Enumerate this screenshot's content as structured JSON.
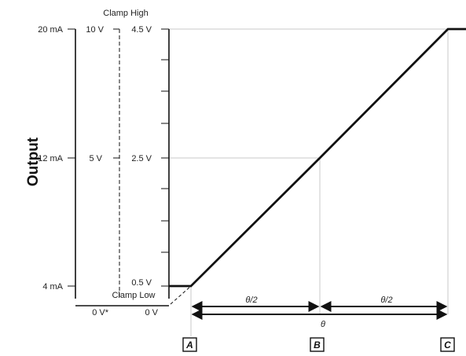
{
  "chart_data": {
    "type": "line",
    "ylabel": "Output",
    "output_scales": [
      {
        "name": "current",
        "ticks": [
          "4 mA",
          "12 mA",
          "20 mA"
        ]
      },
      {
        "name": "voltage_0_10",
        "ticks": [
          "0 V*",
          "5 V",
          "10 V"
        ]
      },
      {
        "name": "voltage_0_4_5",
        "ticks": [
          "0 V",
          "0.5 V",
          "2.5 V",
          "4.5 V"
        ]
      }
    ],
    "clamp_labels": {
      "high": "Clamp High",
      "low": "Clamp Low"
    },
    "x_markers": [
      "A",
      "B",
      "C"
    ],
    "span_labels": {
      "half_1": "θ/2",
      "half_2": "θ/2",
      "full": "θ"
    },
    "series": [
      {
        "x": [
          "0",
          "A",
          "B",
          "C",
          "C+"
        ],
        "y_volts": [
          0.5,
          0.5,
          2.5,
          4.5,
          4.5
        ]
      }
    ],
    "extrapolated": {
      "x": [
        "0",
        "A"
      ],
      "y_volts": [
        0.0,
        0.5
      ]
    },
    "ylim_volts": [
      0,
      4.5
    ],
    "grid": true
  }
}
